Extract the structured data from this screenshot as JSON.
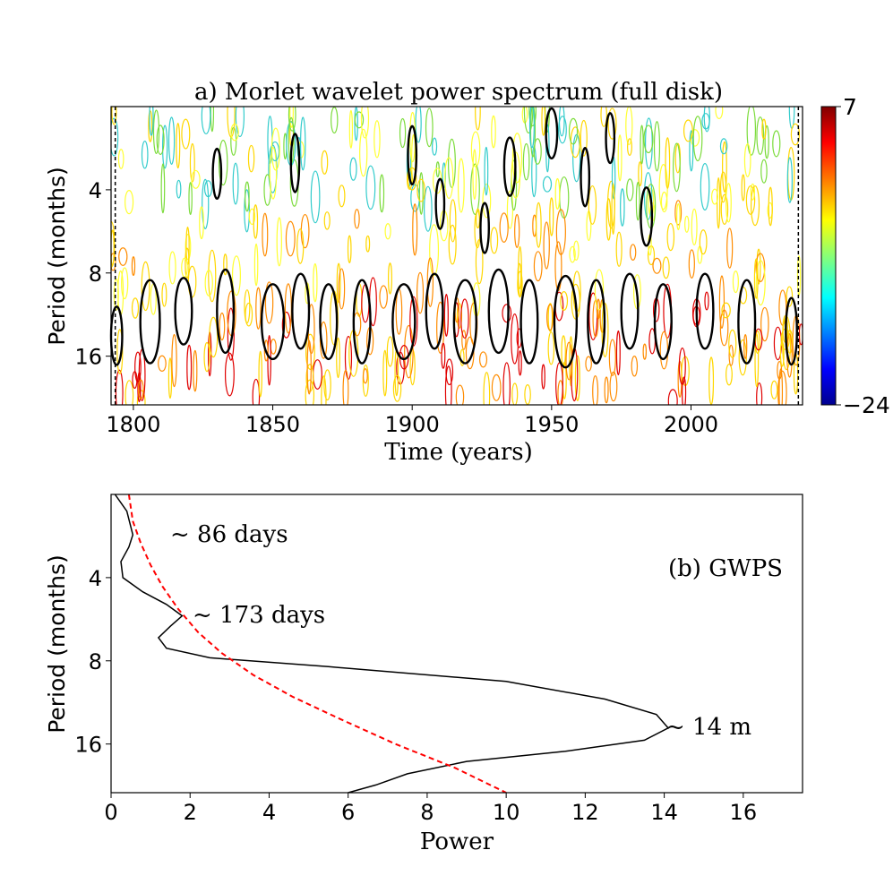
{
  "chart_data": [
    {
      "type": "heatmap",
      "title": "a) Morlet wavelet power spectrum (full disk)",
      "xlabel": "Time (years)",
      "ylabel": "Period (months)",
      "x_ticks": [
        1800,
        1850,
        1900,
        1950,
        2000
      ],
      "y_ticks": [
        4,
        8,
        16
      ],
      "xlim": [
        1792,
        2040
      ],
      "ylim_period_months": [
        2,
        24
      ],
      "y_scale": "log2",
      "y_inverted": true,
      "colorbar": {
        "min": -24,
        "max": 7,
        "tick_labels": [
          "7",
          "−24"
        ],
        "colormap": "jet"
      },
      "contour_colors": [
        "#e00000",
        "#ff8c00",
        "#ffd700",
        "#ffff33",
        "#7cdc3c",
        "#33cccc"
      ],
      "significance_contour_color": "#000000",
      "significant_regions": [
        {
          "x": 1794,
          "p": 13.5,
          "w": 2,
          "h": 0.35
        },
        {
          "x": 1806,
          "p": 12,
          "w": 3.5,
          "h": 0.5
        },
        {
          "x": 1818,
          "p": 11,
          "w": 3,
          "h": 0.4
        },
        {
          "x": 1833,
          "p": 11,
          "w": 3,
          "h": 0.5
        },
        {
          "x": 1850,
          "p": 12,
          "w": 4,
          "h": 0.45
        },
        {
          "x": 1860,
          "p": 11,
          "w": 3,
          "h": 0.45
        },
        {
          "x": 1870,
          "p": 12,
          "w": 3,
          "h": 0.45
        },
        {
          "x": 1882,
          "p": 12,
          "w": 3,
          "h": 0.5
        },
        {
          "x": 1897,
          "p": 12,
          "w": 4,
          "h": 0.45
        },
        {
          "x": 1908,
          "p": 11,
          "w": 3,
          "h": 0.45
        },
        {
          "x": 1919,
          "p": 12,
          "w": 4,
          "h": 0.5
        },
        {
          "x": 1931,
          "p": 11,
          "w": 3.5,
          "h": 0.5
        },
        {
          "x": 1942,
          "p": 12,
          "w": 3,
          "h": 0.5
        },
        {
          "x": 1955,
          "p": 12,
          "w": 4,
          "h": 0.55
        },
        {
          "x": 1966,
          "p": 12,
          "w": 3,
          "h": 0.5
        },
        {
          "x": 1978,
          "p": 11,
          "w": 3,
          "h": 0.45
        },
        {
          "x": 1990,
          "p": 12,
          "w": 3,
          "h": 0.45
        },
        {
          "x": 2005,
          "p": 11,
          "w": 3,
          "h": 0.45
        },
        {
          "x": 2020,
          "p": 12,
          "w": 3,
          "h": 0.5
        },
        {
          "x": 2036,
          "p": 13,
          "w": 2,
          "h": 0.4
        },
        {
          "x": 1830,
          "p": 3.5,
          "w": 1.5,
          "h": 0.3
        },
        {
          "x": 1858,
          "p": 3.2,
          "w": 1.5,
          "h": 0.35
        },
        {
          "x": 1900,
          "p": 3,
          "w": 1.5,
          "h": 0.35
        },
        {
          "x": 1935,
          "p": 3.3,
          "w": 2,
          "h": 0.35
        },
        {
          "x": 1950,
          "p": 2.5,
          "w": 2,
          "h": 0.3
        },
        {
          "x": 1962,
          "p": 3.6,
          "w": 1.5,
          "h": 0.35
        },
        {
          "x": 1971,
          "p": 2.6,
          "w": 1.5,
          "h": 0.3
        },
        {
          "x": 1984,
          "p": 5,
          "w": 2,
          "h": 0.35
        },
        {
          "x": 1926,
          "p": 5.5,
          "w": 1.5,
          "h": 0.3
        },
        {
          "x": 1910,
          "p": 4.5,
          "w": 1.5,
          "h": 0.3
        }
      ]
    },
    {
      "type": "line",
      "title": "(b) GWPS",
      "xlabel": "Power",
      "ylabel": "Period (months)",
      "x_ticks": [
        0,
        2,
        4,
        6,
        8,
        10,
        12,
        14,
        16
      ],
      "y_ticks": [
        4,
        8,
        16
      ],
      "xlim": [
        0,
        17.5
      ],
      "ylim_period_months": [
        2,
        24
      ],
      "y_scale": "log2",
      "y_inverted": true,
      "annotations": [
        "~ 86 days",
        "~ 173 days",
        "~ 14 m"
      ],
      "series": [
        {
          "color": "#000000",
          "style": "solid",
          "points": [
            [
              0.1,
              2
            ],
            [
              0.4,
              2.3
            ],
            [
              0.55,
              2.8
            ],
            [
              0.45,
              3.1
            ],
            [
              0.25,
              3.5
            ],
            [
              0.3,
              4.0
            ],
            [
              0.8,
              4.5
            ],
            [
              1.4,
              5.0
            ],
            [
              1.8,
              5.5
            ],
            [
              1.5,
              6.0
            ],
            [
              1.2,
              6.6
            ],
            [
              1.4,
              7.2
            ],
            [
              2.5,
              7.8
            ],
            [
              5.5,
              8.4
            ],
            [
              10,
              9.5
            ],
            [
              12.5,
              11
            ],
            [
              13.8,
              12.5
            ],
            [
              14.1,
              14
            ],
            [
              13.5,
              15.5
            ],
            [
              11.5,
              17
            ],
            [
              9,
              18.5
            ],
            [
              7.5,
              20.5
            ],
            [
              6.7,
              22.5
            ],
            [
              6,
              24
            ]
          ]
        },
        {
          "color": "#ff0000",
          "style": "dashed",
          "points": [
            [
              0.45,
              2
            ],
            [
              0.55,
              2.5
            ],
            [
              0.75,
              3
            ],
            [
              1.0,
              3.6
            ],
            [
              1.3,
              4.3
            ],
            [
              1.7,
              5.2
            ],
            [
              2.2,
              6.3
            ],
            [
              2.8,
              7.5
            ],
            [
              3.6,
              9
            ],
            [
              4.6,
              10.8
            ],
            [
              5.8,
              13
            ],
            [
              7.2,
              16
            ],
            [
              8.7,
              19.5
            ],
            [
              10,
              24
            ]
          ]
        }
      ]
    }
  ]
}
